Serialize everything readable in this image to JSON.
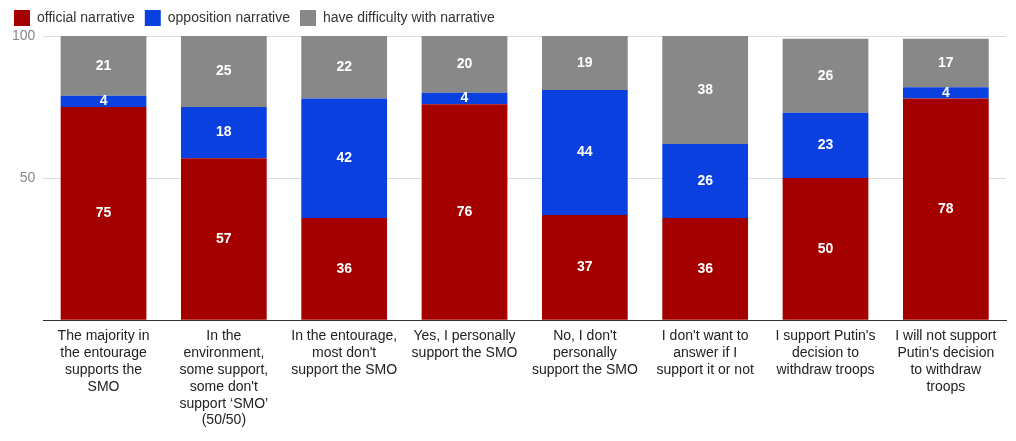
{
  "chart_data": {
    "type": "bar",
    "stacked": true,
    "categories": [
      "The majority in the entourage supports the SMO",
      "In the environment, some support, some don't support ‘SMO’ (50/50)",
      "In the entourage, most don't support the SMO",
      "Yes, I personally support the SMO",
      "No, I don't personally support the SMO",
      "I don't want to answer if I support it or not",
      "I support Putin's decision to withdraw troops",
      "I will not support Putin's decision to withdraw troops"
    ],
    "series": [
      {
        "name": "official narrative",
        "color": "#a50000",
        "values": [
          75,
          57,
          36,
          76,
          37,
          36,
          50,
          78
        ]
      },
      {
        "name": "opposition narrative",
        "color": "#0b40e0",
        "values": [
          4,
          18,
          42,
          4,
          44,
          26,
          23,
          4
        ]
      },
      {
        "name": "have difficulty with narrative",
        "color": "#888888",
        "values": [
          21,
          25,
          22,
          20,
          19,
          38,
          26,
          17
        ]
      }
    ],
    "ylim": [
      0,
      100
    ],
    "yticks": [
      {
        "value": 0,
        "label": null
      },
      50,
      100
    ],
    "grid": "y",
    "legend": "top left",
    "data_labels": true
  }
}
